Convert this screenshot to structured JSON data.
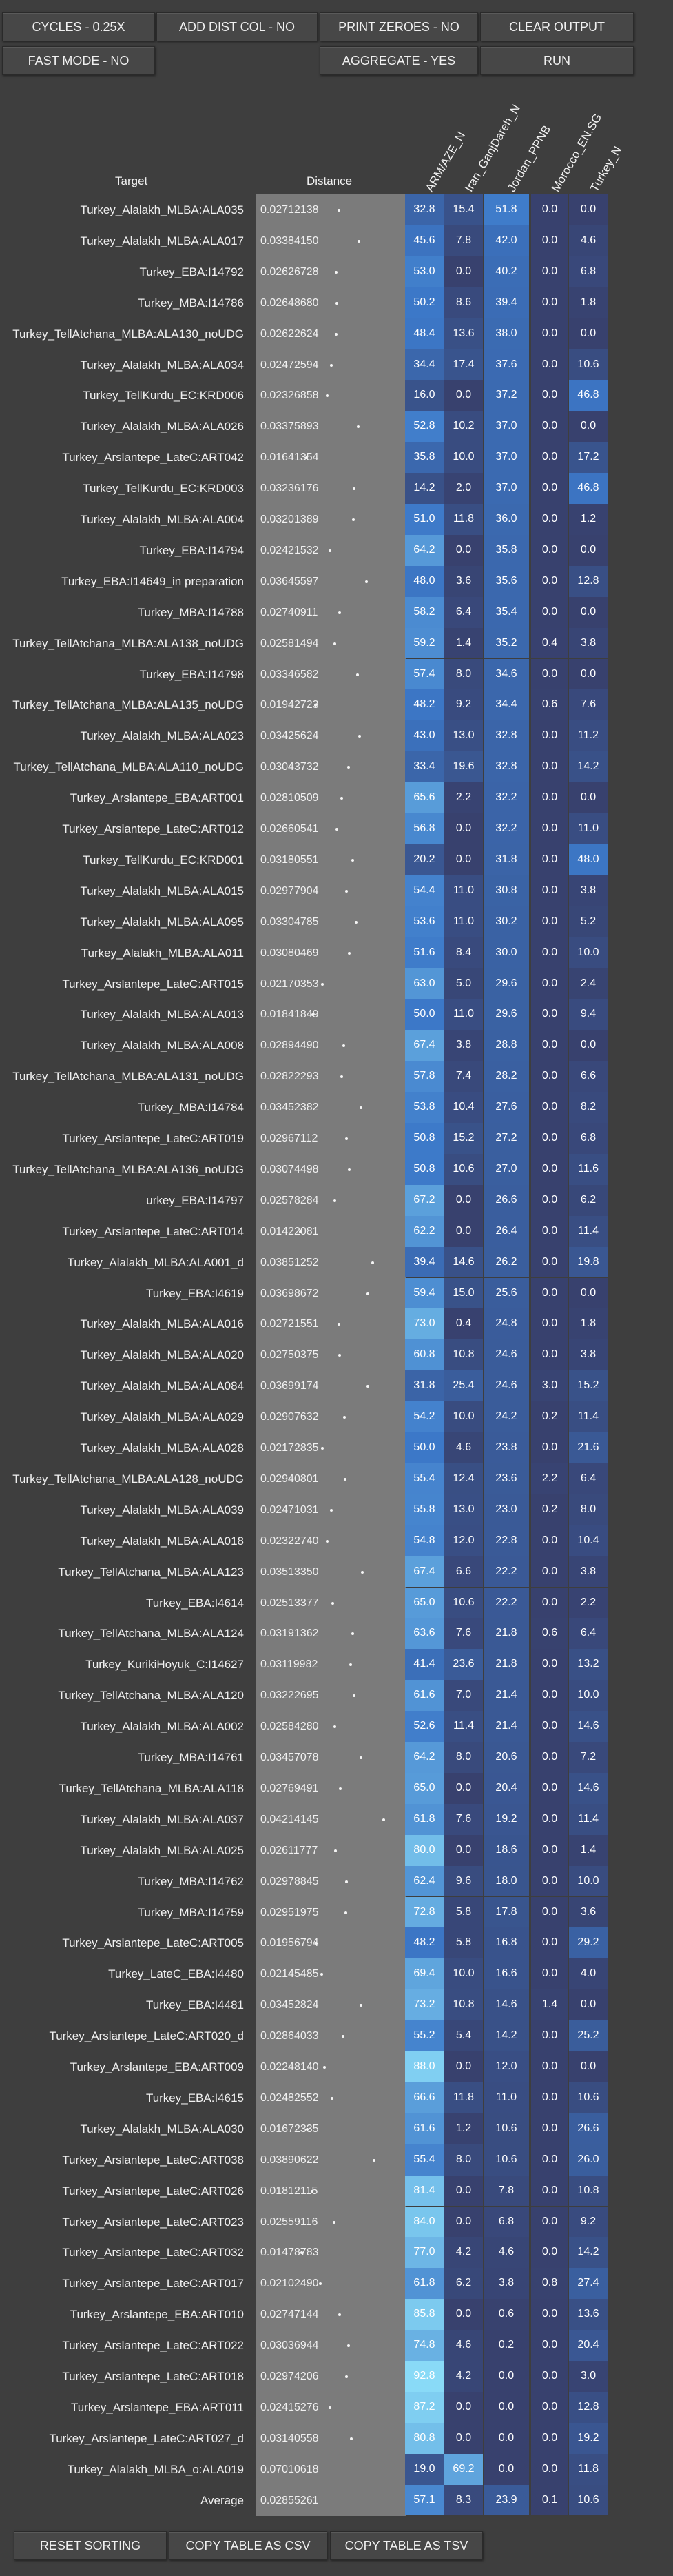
{
  "toolbar": {
    "cycles": "CYCLES - 0.25X",
    "add_dist_col": "ADD DIST COL - NO",
    "print_zeroes": "PRINT ZEROES - NO",
    "clear_output": "CLEAR OUTPUT",
    "fast_mode": "FAST MODE - NO",
    "aggregate": "AGGREGATE - YES",
    "run": "RUN"
  },
  "table": {
    "target_header": "Target",
    "distance_header": "Distance",
    "columns": [
      "ARM/AZE_N",
      "Iran_GanjDareh_N",
      "Jordan_PPNB",
      "Morocco_EN.SG",
      "Turkey_N"
    ],
    "rows": [
      {
        "target": "Turkey_Alalakh_MLBA:ALA035",
        "distance": "0.02712138",
        "values": [
          "32.8",
          "15.4",
          "51.8",
          "0.0",
          "0.0"
        ]
      },
      {
        "target": "Turkey_Alalakh_MLBA:ALA017",
        "distance": "0.03384150",
        "values": [
          "45.6",
          "7.8",
          "42.0",
          "0.0",
          "4.6"
        ]
      },
      {
        "target": "Turkey_EBA:I14792",
        "distance": "0.02626728",
        "values": [
          "53.0",
          "0.0",
          "40.2",
          "0.0",
          "6.8"
        ]
      },
      {
        "target": "Turkey_MBA:I14786",
        "distance": "0.02648680",
        "values": [
          "50.2",
          "8.6",
          "39.4",
          "0.0",
          "1.8"
        ]
      },
      {
        "target": "Turkey_TellAtchana_MLBA:ALA130_noUDG",
        "distance": "0.02622624",
        "values": [
          "48.4",
          "13.6",
          "38.0",
          "0.0",
          "0.0"
        ]
      },
      {
        "target": "Turkey_Alalakh_MLBA:ALA034",
        "distance": "0.02472594",
        "values": [
          "34.4",
          "17.4",
          "37.6",
          "0.0",
          "10.6"
        ]
      },
      {
        "target": "Turkey_TellKurdu_EC:KRD006",
        "distance": "0.02326858",
        "values": [
          "16.0",
          "0.0",
          "37.2",
          "0.0",
          "46.8"
        ]
      },
      {
        "target": "Turkey_Alalakh_MLBA:ALA026",
        "distance": "0.03375893",
        "values": [
          "52.8",
          "10.2",
          "37.0",
          "0.0",
          "0.0"
        ]
      },
      {
        "target": "Turkey_Arslantepe_LateC:ART042",
        "distance": "0.01641354",
        "values": [
          "35.8",
          "10.0",
          "37.0",
          "0.0",
          "17.2"
        ]
      },
      {
        "target": "Turkey_TellKurdu_EC:KRD003",
        "distance": "0.03236176",
        "values": [
          "14.2",
          "2.0",
          "37.0",
          "0.0",
          "46.8"
        ]
      },
      {
        "target": "Turkey_Alalakh_MLBA:ALA004",
        "distance": "0.03201389",
        "values": [
          "51.0",
          "11.8",
          "36.0",
          "0.0",
          "1.2"
        ]
      },
      {
        "target": "Turkey_EBA:I14794",
        "distance": "0.02421532",
        "values": [
          "64.2",
          "0.0",
          "35.8",
          "0.0",
          "0.0"
        ]
      },
      {
        "target": "Turkey_EBA:I14649_in preparation",
        "distance": "0.03645597",
        "values": [
          "48.0",
          "3.6",
          "35.6",
          "0.0",
          "12.8"
        ]
      },
      {
        "target": "Turkey_MBA:I14788",
        "distance": "0.02740911",
        "values": [
          "58.2",
          "6.4",
          "35.4",
          "0.0",
          "0.0"
        ]
      },
      {
        "target": "Turkey_TellAtchana_MLBA:ALA138_noUDG",
        "distance": "0.02581494",
        "values": [
          "59.2",
          "1.4",
          "35.2",
          "0.4",
          "3.8"
        ]
      },
      {
        "target": "Turkey_EBA:I14798",
        "distance": "0.03346582",
        "values": [
          "57.4",
          "8.0",
          "34.6",
          "0.0",
          "0.0"
        ]
      },
      {
        "target": "Turkey_TellAtchana_MLBA:ALA135_noUDG",
        "distance": "0.01942723",
        "values": [
          "48.2",
          "9.2",
          "34.4",
          "0.6",
          "7.6"
        ]
      },
      {
        "target": "Turkey_Alalakh_MLBA:ALA023",
        "distance": "0.03425624",
        "values": [
          "43.0",
          "13.0",
          "32.8",
          "0.0",
          "11.2"
        ]
      },
      {
        "target": "Turkey_TellAtchana_MLBA:ALA110_noUDG",
        "distance": "0.03043732",
        "values": [
          "33.4",
          "19.6",
          "32.8",
          "0.0",
          "14.2"
        ]
      },
      {
        "target": "Turkey_Arslantepe_EBA:ART001",
        "distance": "0.02810509",
        "values": [
          "65.6",
          "2.2",
          "32.2",
          "0.0",
          "0.0"
        ]
      },
      {
        "target": "Turkey_Arslantepe_LateC:ART012",
        "distance": "0.02660541",
        "values": [
          "56.8",
          "0.0",
          "32.2",
          "0.0",
          "11.0"
        ]
      },
      {
        "target": "Turkey_TellKurdu_EC:KRD001",
        "distance": "0.03180551",
        "values": [
          "20.2",
          "0.0",
          "31.8",
          "0.0",
          "48.0"
        ]
      },
      {
        "target": "Turkey_Alalakh_MLBA:ALA015",
        "distance": "0.02977904",
        "values": [
          "54.4",
          "11.0",
          "30.8",
          "0.0",
          "3.8"
        ]
      },
      {
        "target": "Turkey_Alalakh_MLBA:ALA095",
        "distance": "0.03304785",
        "values": [
          "53.6",
          "11.0",
          "30.2",
          "0.0",
          "5.2"
        ]
      },
      {
        "target": "Turkey_Alalakh_MLBA:ALA011",
        "distance": "0.03080469",
        "values": [
          "51.6",
          "8.4",
          "30.0",
          "0.0",
          "10.0"
        ]
      },
      {
        "target": "Turkey_Arslantepe_LateC:ART015",
        "distance": "0.02170353",
        "values": [
          "63.0",
          "5.0",
          "29.6",
          "0.0",
          "2.4"
        ]
      },
      {
        "target": "Turkey_Alalakh_MLBA:ALA013",
        "distance": "0.01841849",
        "values": [
          "50.0",
          "11.0",
          "29.6",
          "0.0",
          "9.4"
        ]
      },
      {
        "target": "Turkey_Alalakh_MLBA:ALA008",
        "distance": "0.02894490",
        "values": [
          "67.4",
          "3.8",
          "28.8",
          "0.0",
          "0.0"
        ]
      },
      {
        "target": "Turkey_TellAtchana_MLBA:ALA131_noUDG",
        "distance": "0.02822293",
        "values": [
          "57.8",
          "7.4",
          "28.2",
          "0.0",
          "6.6"
        ]
      },
      {
        "target": "Turkey_MBA:I14784",
        "distance": "0.03452382",
        "values": [
          "53.8",
          "10.4",
          "27.6",
          "0.0",
          "8.2"
        ]
      },
      {
        "target": "Turkey_Arslantepe_LateC:ART019",
        "distance": "0.02967112",
        "values": [
          "50.8",
          "15.2",
          "27.2",
          "0.0",
          "6.8"
        ]
      },
      {
        "target": "Turkey_TellAtchana_MLBA:ALA136_noUDG",
        "distance": "0.03074498",
        "values": [
          "50.8",
          "10.6",
          "27.0",
          "0.0",
          "11.6"
        ]
      },
      {
        "target": "urkey_EBA:I14797",
        "distance": "0.02578284",
        "values": [
          "67.2",
          "0.0",
          "26.6",
          "0.0",
          "6.2"
        ]
      },
      {
        "target": "Turkey_Arslantepe_LateC:ART014",
        "distance": "0.01422081",
        "values": [
          "62.2",
          "0.0",
          "26.4",
          "0.0",
          "11.4"
        ]
      },
      {
        "target": "Turkey_Alalakh_MLBA:ALA001_d",
        "distance": "0.03851252",
        "values": [
          "39.4",
          "14.6",
          "26.2",
          "0.0",
          "19.8"
        ]
      },
      {
        "target": "Turkey_EBA:I4619",
        "distance": "0.03698672",
        "values": [
          "59.4",
          "15.0",
          "25.6",
          "0.0",
          "0.0"
        ]
      },
      {
        "target": "Turkey_Alalakh_MLBA:ALA016",
        "distance": "0.02721551",
        "values": [
          "73.0",
          "0.4",
          "24.8",
          "0.0",
          "1.8"
        ]
      },
      {
        "target": "Turkey_Alalakh_MLBA:ALA020",
        "distance": "0.02750375",
        "values": [
          "60.8",
          "10.8",
          "24.6",
          "0.0",
          "3.8"
        ]
      },
      {
        "target": "Turkey_Alalakh_MLBA:ALA084",
        "distance": "0.03699174",
        "values": [
          "31.8",
          "25.4",
          "24.6",
          "3.0",
          "15.2"
        ]
      },
      {
        "target": "Turkey_Alalakh_MLBA:ALA029",
        "distance": "0.02907632",
        "values": [
          "54.2",
          "10.0",
          "24.2",
          "0.2",
          "11.4"
        ]
      },
      {
        "target": "Turkey_Alalakh_MLBA:ALA028",
        "distance": "0.02172835",
        "values": [
          "50.0",
          "4.6",
          "23.8",
          "0.0",
          "21.6"
        ]
      },
      {
        "target": "Turkey_TellAtchana_MLBA:ALA128_noUDG",
        "distance": "0.02940801",
        "values": [
          "55.4",
          "12.4",
          "23.6",
          "2.2",
          "6.4"
        ]
      },
      {
        "target": "Turkey_Alalakh_MLBA:ALA039",
        "distance": "0.02471031",
        "values": [
          "55.8",
          "13.0",
          "23.0",
          "0.2",
          "8.0"
        ]
      },
      {
        "target": "Turkey_Alalakh_MLBA:ALA018",
        "distance": "0.02322740",
        "values": [
          "54.8",
          "12.0",
          "22.8",
          "0.0",
          "10.4"
        ]
      },
      {
        "target": "Turkey_TellAtchana_MLBA:ALA123",
        "distance": "0.03513350",
        "values": [
          "67.4",
          "6.6",
          "22.2",
          "0.0",
          "3.8"
        ]
      },
      {
        "target": "Turkey_EBA:I4614",
        "distance": "0.02513377",
        "values": [
          "65.0",
          "10.6",
          "22.2",
          "0.0",
          "2.2"
        ]
      },
      {
        "target": "Turkey_TellAtchana_MLBA:ALA124",
        "distance": "0.03191362",
        "values": [
          "63.6",
          "7.6",
          "21.8",
          "0.6",
          "6.4"
        ]
      },
      {
        "target": "Turkey_KurikiHoyuk_C:I14627",
        "distance": "0.03119982",
        "values": [
          "41.4",
          "23.6",
          "21.8",
          "0.0",
          "13.2"
        ]
      },
      {
        "target": "Turkey_TellAtchana_MLBA:ALA120",
        "distance": "0.03222695",
        "values": [
          "61.6",
          "7.0",
          "21.4",
          "0.0",
          "10.0"
        ]
      },
      {
        "target": "Turkey_Alalakh_MLBA:ALA002",
        "distance": "0.02584280",
        "values": [
          "52.6",
          "11.4",
          "21.4",
          "0.0",
          "14.6"
        ]
      },
      {
        "target": "Turkey_MBA:I14761",
        "distance": "0.03457078",
        "values": [
          "64.2",
          "8.0",
          "20.6",
          "0.0",
          "7.2"
        ]
      },
      {
        "target": "Turkey_TellAtchana_MLBA:ALA118",
        "distance": "0.02769491",
        "values": [
          "65.0",
          "0.0",
          "20.4",
          "0.0",
          "14.6"
        ]
      },
      {
        "target": "Turkey_Alalakh_MLBA:ALA037",
        "distance": "0.04214145",
        "values": [
          "61.8",
          "7.6",
          "19.2",
          "0.0",
          "11.4"
        ]
      },
      {
        "target": "Turkey_Alalakh_MLBA:ALA025",
        "distance": "0.02611777",
        "values": [
          "80.0",
          "0.0",
          "18.6",
          "0.0",
          "1.4"
        ]
      },
      {
        "target": "Turkey_MBA:I14762",
        "distance": "0.02978845",
        "values": [
          "62.4",
          "9.6",
          "18.0",
          "0.0",
          "10.0"
        ]
      },
      {
        "target": "Turkey_MBA:I14759",
        "distance": "0.02951975",
        "values": [
          "72.8",
          "5.8",
          "17.8",
          "0.0",
          "3.6"
        ]
      },
      {
        "target": "Turkey_Arslantepe_LateC:ART005",
        "distance": "0.01956794",
        "values": [
          "48.2",
          "5.8",
          "16.8",
          "0.0",
          "29.2"
        ]
      },
      {
        "target": "Turkey_LateC_EBA:I4480",
        "distance": "0.02145485",
        "values": [
          "69.4",
          "10.0",
          "16.6",
          "0.0",
          "4.0"
        ]
      },
      {
        "target": "Turkey_EBA:I4481",
        "distance": "0.03452824",
        "values": [
          "73.2",
          "10.8",
          "14.6",
          "1.4",
          "0.0"
        ]
      },
      {
        "target": "Turkey_Arslantepe_LateC:ART020_d",
        "distance": "0.02864033",
        "values": [
          "55.2",
          "5.4",
          "14.2",
          "0.0",
          "25.2"
        ]
      },
      {
        "target": "Turkey_Arslantepe_EBA:ART009",
        "distance": "0.02248140",
        "values": [
          "88.0",
          "0.0",
          "12.0",
          "0.0",
          "0.0"
        ]
      },
      {
        "target": "Turkey_EBA:I4615",
        "distance": "0.02482552",
        "values": [
          "66.6",
          "11.8",
          "11.0",
          "0.0",
          "10.6"
        ]
      },
      {
        "target": "Turkey_Alalakh_MLBA:ALA030",
        "distance": "0.01672335",
        "values": [
          "61.6",
          "1.2",
          "10.6",
          "0.0",
          "26.6"
        ]
      },
      {
        "target": "Turkey_Arslantepe_LateC:ART038",
        "distance": "0.03890622",
        "values": [
          "55.4",
          "8.0",
          "10.6",
          "0.0",
          "26.0"
        ]
      },
      {
        "target": "Turkey_Arslantepe_LateC:ART026",
        "distance": "0.01812115",
        "values": [
          "81.4",
          "0.0",
          "7.8",
          "0.0",
          "10.8"
        ]
      },
      {
        "target": "Turkey_Arslantepe_LateC:ART023",
        "distance": "0.02559116",
        "values": [
          "84.0",
          "0.0",
          "6.8",
          "0.0",
          "9.2"
        ]
      },
      {
        "target": "Turkey_Arslantepe_LateC:ART032",
        "distance": "0.01478783",
        "values": [
          "77.0",
          "4.2",
          "4.6",
          "0.0",
          "14.2"
        ]
      },
      {
        "target": "Turkey_Arslantepe_LateC:ART017",
        "distance": "0.02102490",
        "values": [
          "61.8",
          "6.2",
          "3.8",
          "0.8",
          "27.4"
        ]
      },
      {
        "target": "Turkey_Arslantepe_EBA:ART010",
        "distance": "0.02747144",
        "values": [
          "85.8",
          "0.0",
          "0.6",
          "0.0",
          "13.6"
        ]
      },
      {
        "target": "Turkey_Arslantepe_LateC:ART022",
        "distance": "0.03036944",
        "values": [
          "74.8",
          "4.6",
          "0.2",
          "0.0",
          "20.4"
        ]
      },
      {
        "target": "Turkey_Arslantepe_LateC:ART018",
        "distance": "0.02974206",
        "values": [
          "92.8",
          "4.2",
          "0.0",
          "0.0",
          "3.0"
        ]
      },
      {
        "target": "Turkey_Arslantepe_EBA:ART011",
        "distance": "0.02415276",
        "values": [
          "87.2",
          "0.0",
          "0.0",
          "0.0",
          "12.8"
        ]
      },
      {
        "target": "Turkey_Arslantepe_LateC:ART027_d",
        "distance": "0.03140558",
        "values": [
          "80.8",
          "0.0",
          "0.0",
          "0.0",
          "19.2"
        ]
      },
      {
        "target": "Turkey_Alalakh_MLBA_o:ALA019",
        "distance": "0.07010618",
        "values": [
          "19.0",
          "69.2",
          "0.0",
          "0.0",
          "11.8"
        ]
      }
    ],
    "average": {
      "target": "Average",
      "distance": "0.02855261",
      "values": [
        "57.1",
        "8.3",
        "23.9",
        "0.1",
        "10.6"
      ]
    }
  },
  "footer": {
    "reset_sorting": "RESET SORTING",
    "copy_csv": "COPY TABLE AS CSV",
    "copy_tsv": "COPY TABLE AS TSV"
  },
  "colors": {
    "background": "#3e3e3e",
    "distance_column": "#7b7b7b",
    "button": "#474747"
  }
}
